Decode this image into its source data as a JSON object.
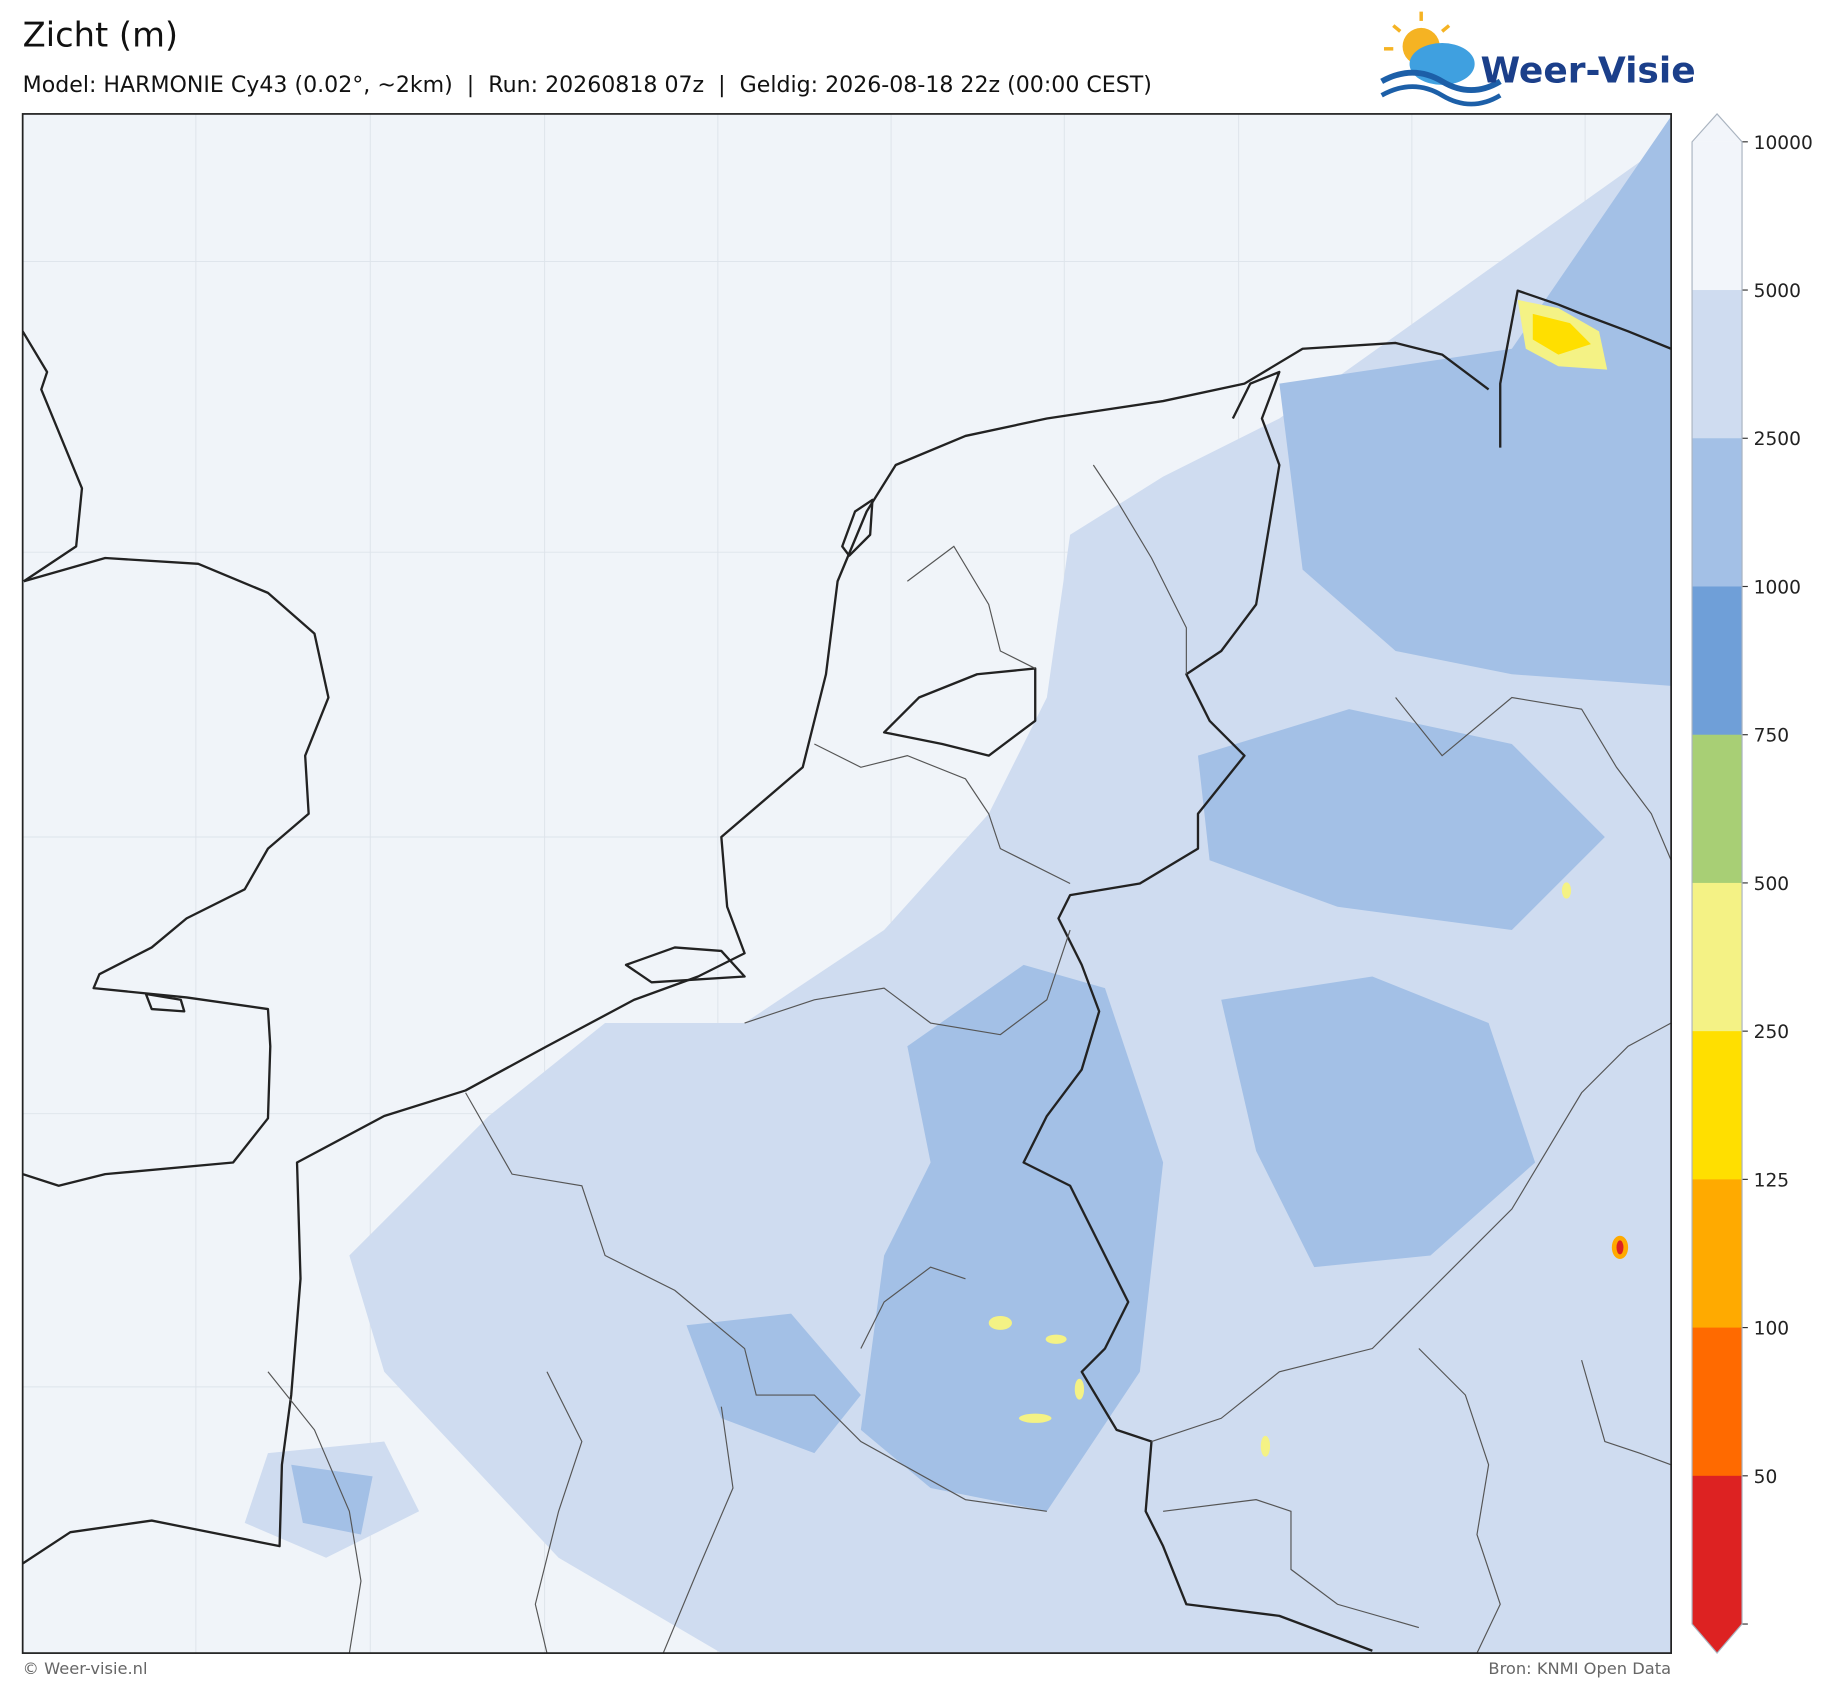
{
  "header": {
    "title": "Zicht (m)",
    "subtitle": "Model: HARMONIE Cy43 (0.02°, ~2km)  |  Run: 20260818 07z  |  Geldig: 2026-08-18 22z (00:00 CEST)"
  },
  "logo": {
    "text": "Weer-Visie"
  },
  "colorbar": {
    "levels": [
      10000,
      5000,
      2500,
      1000,
      750,
      500,
      250,
      125,
      100,
      50
    ],
    "colors": [
      "#f2f5fa",
      "#cfdcf0",
      "#a3c0e6",
      "#6f9fd8",
      "#a8cf75",
      "#f4f285",
      "#ffdf00",
      "#ffaa00",
      "#ff6a00",
      "#dd2222"
    ]
  },
  "footer": {
    "copyright": "© Weer-visie.nl",
    "source": "Bron: KNMI Open Data"
  }
}
